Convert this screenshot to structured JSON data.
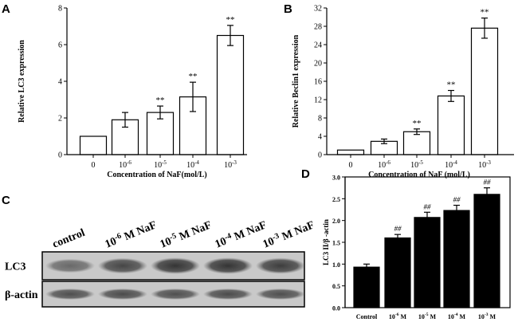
{
  "panels": {
    "A": "A",
    "B": "B",
    "C": "C",
    "D": "D"
  },
  "chart_data": [
    {
      "id": "A",
      "type": "bar",
      "title": "",
      "xlabel": "Concentration of NaF(mol/L)",
      "ylabel": "Relative LC3 expression",
      "categories": [
        {
          "base": "0",
          "exp": ""
        },
        {
          "base": "10",
          "exp": "-6"
        },
        {
          "base": "10",
          "exp": "-5"
        },
        {
          "base": "10",
          "exp": "-4"
        },
        {
          "base": "10",
          "exp": "-3"
        }
      ],
      "values": [
        1.0,
        1.9,
        2.3,
        3.15,
        6.5
      ],
      "errors": [
        0.0,
        0.4,
        0.35,
        0.8,
        0.55
      ],
      "annotations": [
        "",
        "",
        "**",
        "**",
        "**"
      ],
      "ylim": [
        0,
        8
      ],
      "yticks": [
        0,
        2,
        4,
        6,
        8
      ],
      "bar_color": "#ffffff"
    },
    {
      "id": "B",
      "type": "bar",
      "title": "",
      "xlabel": "Concentration of NaF (mol/L)",
      "ylabel": "Relative Beclin1 expression",
      "categories": [
        {
          "base": "0",
          "exp": ""
        },
        {
          "base": "10",
          "exp": "-6"
        },
        {
          "base": "10",
          "exp": "-5"
        },
        {
          "base": "10",
          "exp": "-4"
        },
        {
          "base": "10",
          "exp": "-3"
        }
      ],
      "values": [
        1.0,
        2.9,
        5.0,
        12.8,
        27.6
      ],
      "errors": [
        0.0,
        0.5,
        0.6,
        1.2,
        2.2
      ],
      "annotations": [
        "",
        "",
        "**",
        "**",
        "**"
      ],
      "ylim": [
        0,
        32
      ],
      "yticks": [
        0,
        4,
        8,
        12,
        16,
        20,
        24,
        28,
        32
      ],
      "bar_color": "#ffffff"
    },
    {
      "id": "D",
      "type": "bar",
      "title": "",
      "xlabel": "",
      "ylabel": "LC3 II/β -actin",
      "categories": [
        {
          "base": "Control",
          "exp": "",
          "unit": ""
        },
        {
          "base": "10",
          "exp": "-6",
          "unit": " M"
        },
        {
          "base": "10",
          "exp": "-5",
          "unit": " M"
        },
        {
          "base": "10",
          "exp": "-4",
          "unit": " M"
        },
        {
          "base": "10",
          "exp": "-3",
          "unit": " M"
        }
      ],
      "values": [
        0.93,
        1.6,
        2.07,
        2.23,
        2.6
      ],
      "errors": [
        0.07,
        0.08,
        0.12,
        0.12,
        0.15
      ],
      "annotations": [
        "",
        "##",
        "##",
        "##",
        "##"
      ],
      "ylim": [
        0.0,
        3.0
      ],
      "yticks": [
        "0.0",
        "0.5",
        "1.0",
        "1.5",
        "2.0",
        "2.5",
        "3.0"
      ],
      "bar_color": "#000000"
    }
  ],
  "blot": {
    "lanes": [
      {
        "label": "control",
        "base": "",
        "exp": "",
        "unit": ""
      },
      {
        "label": "",
        "base": "10",
        "exp": "-6",
        "unit": " M NaF"
      },
      {
        "label": "",
        "base": "10",
        "exp": "-5",
        "unit": " M NaF"
      },
      {
        "label": "",
        "base": "10",
        "exp": "-4",
        "unit": " M NaF"
      },
      {
        "label": "",
        "base": "10",
        "exp": "-3",
        "unit": " M NaF"
      }
    ],
    "rows": [
      {
        "label": "LC3",
        "intensity": [
          0.55,
          0.75,
          0.85,
          0.85,
          0.8
        ]
      },
      {
        "label": "β-actin",
        "intensity": [
          0.7,
          0.72,
          0.7,
          0.72,
          0.7
        ]
      }
    ]
  }
}
